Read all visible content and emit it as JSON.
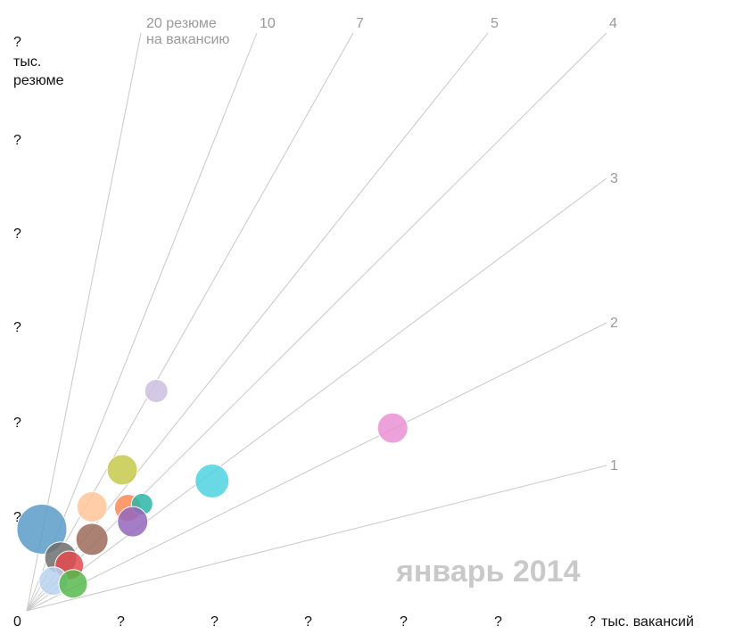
{
  "chart_data": {
    "type": "scatter",
    "period_label": "январь 2014",
    "x_axis": {
      "tick_labels": [
        "0",
        "?",
        "?",
        "?",
        "?",
        "?",
        "?"
      ],
      "unit_label": "тыс. вакансий"
    },
    "y_axis": {
      "tick_labels": [
        "?",
        "?",
        "?",
        "?",
        "?",
        "?"
      ],
      "unit_label": [
        "тыс.",
        "резюме"
      ]
    },
    "ratio_lines": [
      {
        "value": 20,
        "label": "20 резюме",
        "label2": "на вакансию"
      },
      {
        "value": 10,
        "label": "10"
      },
      {
        "value": 7,
        "label": "7"
      },
      {
        "value": 5,
        "label": "5"
      },
      {
        "value": 4,
        "label": "4"
      },
      {
        "value": 3,
        "label": "3"
      },
      {
        "value": 2,
        "label": "2"
      },
      {
        "value": 1,
        "label": "1"
      }
    ],
    "points": [
      {
        "x": 0.16,
        "y": 0.88,
        "r": 28,
        "color": "#5b9bc8"
      },
      {
        "x": 0.36,
        "y": 0.57,
        "r": 18,
        "color": "#6f6f6f"
      },
      {
        "x": 0.45,
        "y": 0.49,
        "r": 16,
        "color": "#e14a4f"
      },
      {
        "x": 0.69,
        "y": 0.77,
        "r": 18,
        "color": "#9c6b5c"
      },
      {
        "x": 0.69,
        "y": 1.12,
        "r": 17,
        "color": "#ffc499"
      },
      {
        "x": 1.07,
        "y": 1.11,
        "r": 15,
        "color": "#fb8a57"
      },
      {
        "x": 1.22,
        "y": 1.15,
        "r": 12,
        "color": "#2bb5a7"
      },
      {
        "x": 1.12,
        "y": 0.96,
        "r": 17,
        "color": "#9466bd"
      },
      {
        "x": 1.01,
        "y": 1.52,
        "r": 17,
        "color": "#c5c94a"
      },
      {
        "x": 1.37,
        "y": 2.37,
        "r": 13,
        "color": "#cdbfe0"
      },
      {
        "x": 1.96,
        "y": 1.4,
        "r": 19,
        "color": "#4fd3e1"
      },
      {
        "x": 3.87,
        "y": 1.97,
        "r": 17,
        "color": "#ea91d4"
      },
      {
        "x": 0.28,
        "y": 0.32,
        "r": 16,
        "color": "#b9d2ee"
      },
      {
        "x": 0.49,
        "y": 0.29,
        "r": 16,
        "color": "#57b84e"
      }
    ]
  }
}
